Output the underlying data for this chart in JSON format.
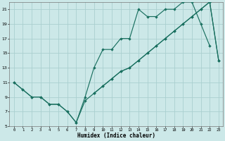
{
  "xlabel": "Humidex (Indice chaleur)",
  "background_color": "#cce8e8",
  "grid_color": "#aacfcf",
  "line_color": "#1a7060",
  "xlim_min": -0.5,
  "xlim_max": 23.5,
  "ylim_min": 5,
  "ylim_max": 22,
  "xticks": [
    0,
    1,
    2,
    3,
    4,
    5,
    6,
    7,
    8,
    9,
    10,
    11,
    12,
    13,
    14,
    15,
    16,
    17,
    18,
    19,
    20,
    21,
    22,
    23
  ],
  "yticks": [
    5,
    7,
    9,
    11,
    13,
    15,
    17,
    19,
    21
  ],
  "line1_x": [
    0,
    1,
    2,
    3,
    4,
    5,
    6,
    7,
    8,
    9,
    10,
    11,
    12,
    13,
    14,
    15,
    16,
    17,
    18,
    19,
    20,
    21,
    22
  ],
  "line1_y": [
    11,
    10,
    9,
    9,
    8,
    8,
    7,
    5.5,
    9,
    13,
    15.5,
    15.5,
    17,
    17,
    21,
    20,
    20,
    21,
    21,
    22,
    22,
    19,
    16
  ],
  "line2_x": [
    0,
    1,
    2,
    3,
    4,
    5,
    6,
    7,
    8,
    9,
    10,
    11,
    12,
    13,
    14,
    15,
    16,
    17,
    18,
    19,
    20,
    21,
    22,
    23
  ],
  "line2_y": [
    11,
    10,
    9,
    9,
    8,
    8,
    7,
    5.5,
    8.5,
    9.5,
    10.5,
    11.5,
    12.5,
    13,
    14,
    15,
    16,
    17,
    18,
    19,
    20,
    21,
    22,
    14
  ],
  "line3_x": [
    9,
    10,
    11,
    12,
    13,
    14,
    15,
    16,
    17,
    18,
    19,
    20,
    21,
    22,
    23
  ],
  "line3_y": [
    9.5,
    10.5,
    11.5,
    12.5,
    13,
    14,
    15,
    16,
    17,
    18,
    19,
    20,
    21,
    22,
    14
  ]
}
